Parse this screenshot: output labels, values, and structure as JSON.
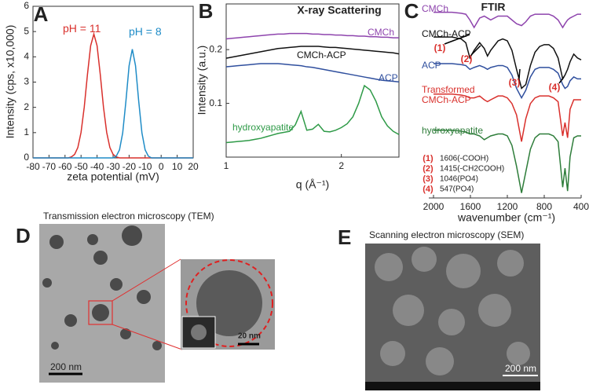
{
  "chart_data": [
    {
      "type": "line",
      "panel": "A",
      "xlabel": "zeta potential (mV)",
      "ylabel": "Intensity (cps, x10,000)",
      "x": [
        -80,
        -78,
        -76,
        -74,
        -72,
        -70,
        -68,
        -66,
        -64,
        -62,
        -60,
        -58,
        -56,
        -54,
        -52,
        -50,
        -48,
        -46,
        -44,
        -42,
        -40,
        -38,
        -36,
        -34,
        -32,
        -30,
        -28,
        -26,
        -24,
        -22,
        -20,
        -18,
        -16,
        -14,
        -12,
        -10,
        -8,
        -6,
        -4,
        -2,
        0,
        2,
        4,
        6,
        8,
        10,
        12,
        14,
        16,
        18,
        20
      ],
      "series": [
        {
          "name": "pH = 11",
          "color": "#d9302c",
          "values": [
            0,
            0,
            0,
            0,
            0,
            0,
            0,
            0,
            0,
            0,
            0,
            0,
            0.04,
            0.14,
            0.41,
            1.01,
            2.01,
            3.3,
            4.44,
            4.9,
            4.44,
            3.3,
            2.01,
            1.01,
            0.41,
            0.14,
            0.04,
            0,
            0,
            0,
            0,
            0,
            0,
            0,
            0,
            0,
            0,
            0,
            0,
            0,
            0,
            0,
            0,
            0,
            0,
            0,
            0,
            0,
            0,
            0,
            0
          ]
        },
        {
          "name": "pH = 8",
          "color": "#1f8cc7",
          "values": [
            0,
            0,
            0,
            0,
            0,
            0,
            0,
            0,
            0,
            0,
            0,
            0,
            0,
            0,
            0,
            0,
            0,
            0,
            0,
            0,
            0,
            0,
            0,
            0,
            0,
            0,
            0.07,
            0.32,
            0.99,
            2.24,
            3.65,
            4.3,
            3.65,
            2.24,
            0.99,
            0.32,
            0.07,
            0,
            0,
            0,
            0,
            0,
            0,
            0,
            0,
            0,
            0,
            0,
            0,
            0,
            0
          ]
        }
      ],
      "xlim": [
        -80,
        20
      ],
      "xticks": [
        -80,
        -70,
        -60,
        -50,
        -40,
        -30,
        -20,
        -10,
        0,
        10,
        20
      ],
      "ylim": [
        0,
        6
      ],
      "yticks": [
        0,
        1,
        2,
        3,
        4,
        5,
        6
      ]
    },
    {
      "type": "line",
      "panel": "B",
      "title": "X-ray Scattering",
      "xlabel": "q (Å⁻¹)",
      "ylabel": "Intensity (a.u.)",
      "x": [
        1,
        1.05,
        1.1,
        1.15,
        1.2,
        1.25,
        1.3,
        1.35,
        1.4,
        1.45,
        1.5,
        1.55,
        1.6,
        1.65,
        1.7,
        1.75,
        1.8,
        1.85,
        1.9,
        1.95,
        2,
        2.05,
        2.1,
        2.15,
        2.2,
        2.25,
        2.3,
        2.35,
        2.4,
        2.45,
        2.5
      ],
      "series": [
        {
          "name": "CMCh",
          "color": "#8e44ad",
          "values": [
            0.22,
            0.221,
            0.222,
            0.223,
            0.224,
            0.225,
            0.226,
            0.227,
            0.228,
            0.229,
            0.229,
            0.23,
            0.23,
            0.23,
            0.23,
            0.229,
            0.229,
            0.228,
            0.228,
            0.227,
            0.227,
            0.226,
            0.226,
            0.225,
            0.225,
            0.224,
            0.224,
            0.223,
            0.223,
            0.222,
            0.222
          ]
        },
        {
          "name": "CMCh-ACP",
          "color": "#111111",
          "values": [
            0.184,
            0.186,
            0.188,
            0.19,
            0.192,
            0.194,
            0.196,
            0.198,
            0.2,
            0.202,
            0.203,
            0.204,
            0.205,
            0.206,
            0.206,
            0.206,
            0.206,
            0.205,
            0.204,
            0.204,
            0.203,
            0.202,
            0.201,
            0.2,
            0.199,
            0.198,
            0.197,
            0.196,
            0.195,
            0.194,
            0.192
          ]
        },
        {
          "name": "ACP",
          "color": "#2f4f9e",
          "values": [
            0.168,
            0.169,
            0.17,
            0.171,
            0.172,
            0.173,
            0.174,
            0.174,
            0.174,
            0.174,
            0.173,
            0.172,
            0.171,
            0.17,
            0.168,
            0.167,
            0.165,
            0.163,
            0.161,
            0.159,
            0.157,
            0.155,
            0.153,
            0.151,
            0.149,
            0.147,
            0.145,
            0.143,
            0.142,
            0.141,
            0.14
          ]
        },
        {
          "name": "hydroxyapatite",
          "color": "#2e9a47",
          "values": [
            0.027,
            0.028,
            0.029,
            0.03,
            0.031,
            0.033,
            0.035,
            0.038,
            0.041,
            0.044,
            0.046,
            0.048,
            0.06,
            0.085,
            0.05,
            0.052,
            0.061,
            0.048,
            0.047,
            0.05,
            0.055,
            0.062,
            0.075,
            0.1,
            0.133,
            0.125,
            0.104,
            0.075,
            0.058,
            0.048,
            0.042
          ]
        }
      ],
      "xlim": [
        1,
        2.5
      ],
      "xticks": [
        1,
        2
      ],
      "ylim": [
        0,
        0.285
      ],
      "yticks": [
        0.1,
        0.2
      ]
    },
    {
      "type": "line",
      "panel": "C",
      "title": "FTIR",
      "xlabel": "wavenumber (cm⁻¹)",
      "x": [
        2000,
        1900,
        1800,
        1700,
        1650,
        1606,
        1560,
        1500,
        1450,
        1415,
        1380,
        1300,
        1250,
        1200,
        1150,
        1100,
        1046,
        1000,
        950,
        900,
        850,
        800,
        750,
        700,
        650,
        600,
        575,
        547,
        520,
        480,
        440,
        400
      ],
      "series": [
        {
          "name": "CMCh",
          "color": "#8e44ad",
          "values": [
            96,
            96,
            96,
            95.5,
            95,
            92,
            88,
            93,
            94,
            93,
            92,
            94,
            94,
            94,
            92,
            90,
            89,
            91,
            94,
            95,
            95,
            95,
            95,
            94,
            92,
            88,
            90,
            92,
            93,
            94,
            95,
            95
          ]
        },
        {
          "name": "CMCh-ACP",
          "color": "#111111",
          "values": [
            83,
            83,
            83,
            82,
            80,
            72,
            76,
            80,
            77,
            73,
            76,
            81,
            82,
            81,
            76,
            66,
            56,
            58,
            68,
            75,
            78,
            79,
            79,
            77,
            72,
            61,
            63,
            66,
            70,
            74,
            72,
            71
          ]
        },
        {
          "name": "ACP",
          "color": "#2f4f9e",
          "values": [
            69,
            69,
            69,
            68.5,
            68,
            66,
            67,
            68,
            67,
            66,
            67,
            68,
            68,
            67,
            63,
            56,
            51,
            55,
            62,
            66,
            67,
            67,
            67,
            66,
            64,
            58,
            56,
            57,
            60,
            62,
            61,
            61
          ]
        },
        {
          "name": "Transformed CMCh-ACP",
          "color": "#d9302c",
          "values": [
            53,
            53,
            53,
            52.5,
            52,
            51,
            51,
            52,
            50,
            49,
            50,
            52,
            52,
            51,
            48,
            42,
            28,
            40,
            48,
            51,
            52,
            52,
            52,
            51,
            49,
            31,
            38,
            30,
            45,
            50,
            50,
            50
          ]
        },
        {
          "name": "hydroxyapatite",
          "color": "#2e7d3a",
          "values": [
            34,
            34,
            34,
            33.5,
            33,
            32,
            32,
            31,
            29,
            30,
            31,
            32,
            32,
            31,
            26,
            15,
            1,
            12,
            24,
            30,
            32,
            32,
            32,
            31,
            28,
            4,
            14,
            2,
            20,
            30,
            31,
            31
          ]
        }
      ],
      "xlim": [
        2000,
        400
      ],
      "xticks": [
        2000,
        1600,
        1200,
        800,
        400
      ],
      "ylim": [
        0,
        100
      ],
      "peaks": [
        {
          "label": "(1)",
          "text": "1606(-COOH)"
        },
        {
          "label": "(2)",
          "text": "1415(-CH2COOH)"
        },
        {
          "label": "(3)",
          "text": "1046(PO4)"
        },
        {
          "label": "(4)",
          "text": "547(PO4)"
        }
      ]
    }
  ],
  "micrographs": [
    {
      "panel": "D",
      "title": "Transmission electron microscopy (TEM)",
      "scale_bar": "200 nm",
      "inset_scale_bar": "20 nm"
    },
    {
      "panel": "E",
      "title": "Scanning electron microscopy (SEM)",
      "scale_bar": "200 nm"
    }
  ]
}
